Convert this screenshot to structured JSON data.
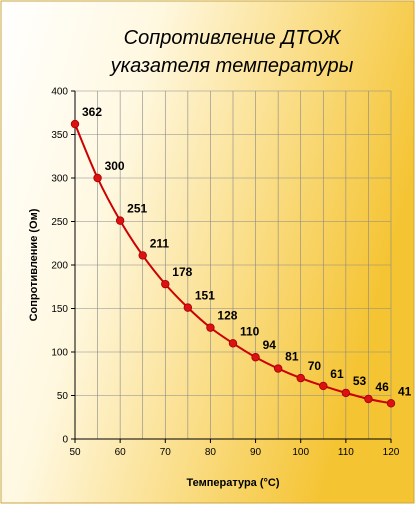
{
  "chart_data": {
    "type": "line",
    "title_line1": "Сопротивление ДТОЖ",
    "title_line2": "указателя температуры",
    "xlabel": "Температура (°С)",
    "ylabel": "Сопротивление (Ом)",
    "x": [
      50,
      55,
      60,
      65,
      70,
      75,
      80,
      85,
      90,
      95,
      100,
      105,
      110,
      115,
      120
    ],
    "values": [
      362,
      300,
      251,
      211,
      178,
      151,
      128,
      110,
      94,
      81,
      70,
      61,
      53,
      46,
      41
    ],
    "xlim": [
      50,
      120
    ],
    "ylim": [
      0,
      400
    ],
    "x_ticks": [
      "50",
      "60",
      "70",
      "80",
      "90",
      "100",
      "110",
      "120"
    ],
    "y_ticks": [
      "0",
      "50",
      "100",
      "150",
      "200",
      "250",
      "300",
      "350",
      "400"
    ],
    "grid": true,
    "colors": {
      "line": "#cc0000",
      "marker": "#dd1111",
      "background_start": "#ffffff",
      "background_end": "#f7c93a",
      "grid": "#888888"
    }
  }
}
